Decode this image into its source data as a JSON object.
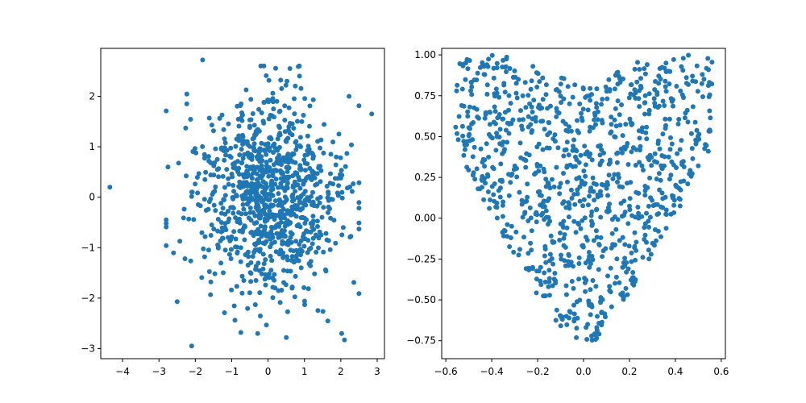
{
  "chart_data": [
    {
      "type": "scatter",
      "xlim": [
        -4.6,
        3.2
      ],
      "ylim": [
        -3.2,
        2.95
      ],
      "x_ticks": [
        "−4",
        "−3",
        "−2",
        "−1",
        "0",
        "1",
        "2",
        "3"
      ],
      "x_tick_values": [
        -4,
        -3,
        -2,
        -1,
        0,
        1,
        2,
        3
      ],
      "y_ticks": [
        "−3",
        "−2",
        "−1",
        "0",
        "1",
        "2"
      ],
      "y_tick_values": [
        -3,
        -2,
        -1,
        0,
        1,
        2
      ],
      "grid": false,
      "marker_color": "#1f77b4",
      "distribution": {
        "kind": "gaussian",
        "n": 1000,
        "x_mean": 0,
        "x_std": 1,
        "y_mean": 0,
        "y_std": 1
      },
      "notable_points": [
        {
          "x": -4.35,
          "y": 0.2
        },
        {
          "x": 2.85,
          "y": 1.65
        },
        {
          "x": -2.1,
          "y": -2.95
        },
        {
          "x": 2.1,
          "y": -2.83
        },
        {
          "x": -1.8,
          "y": 2.72
        },
        {
          "x": 0.6,
          "y": 2.55
        },
        {
          "x": -2.5,
          "y": -2.07
        },
        {
          "x": 0.5,
          "y": -2.78
        }
      ]
    },
    {
      "type": "scatter",
      "xlim": [
        -0.618,
        0.618
      ],
      "ylim": [
        -0.86,
        1.04
      ],
      "x_ticks": [
        "−0.6",
        "−0.4",
        "−0.2",
        "0.0",
        "0.2",
        "0.4",
        "0.6"
      ],
      "x_tick_values": [
        -0.6,
        -0.4,
        -0.2,
        0.0,
        0.2,
        0.4,
        0.6
      ],
      "y_ticks": [
        "−0.75",
        "−0.50",
        "−0.25",
        "0.00",
        "0.25",
        "0.50",
        "0.75",
        "1.00"
      ],
      "y_tick_values": [
        -0.75,
        -0.5,
        -0.25,
        0.0,
        0.25,
        0.5,
        0.75,
        1.0
      ],
      "grid": false,
      "marker_color": "#1f77b4",
      "distribution": {
        "kind": "uniform-in-heart-shape",
        "n": 1000,
        "x_range": [
          -0.56,
          0.56
        ],
        "y_range": [
          -0.82,
          1.0
        ]
      }
    }
  ]
}
